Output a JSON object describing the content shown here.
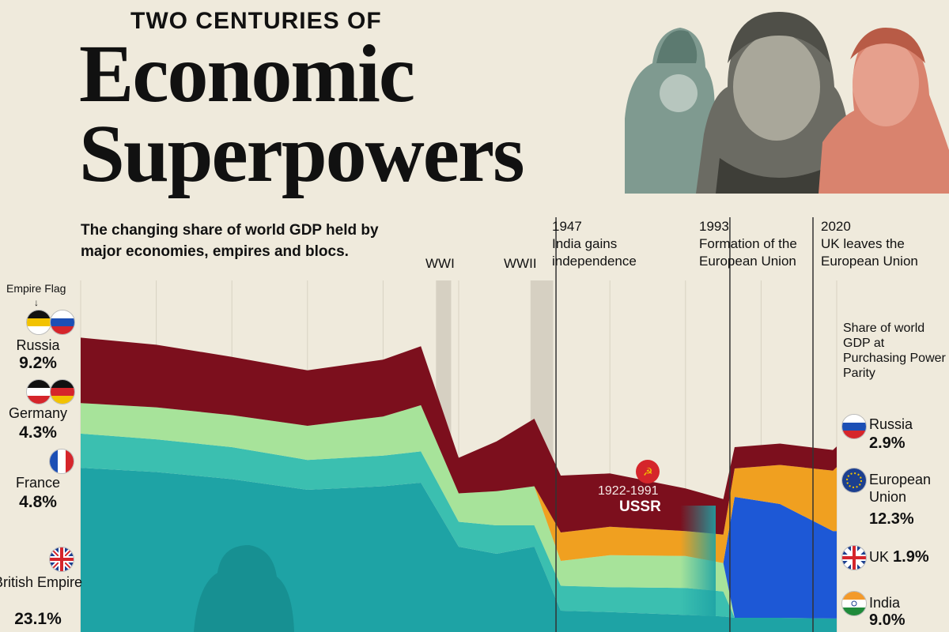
{
  "header": {
    "kicker": "TWO CENTURIES OF",
    "title_line1": "Economic",
    "title_line2": "Superpowers",
    "subtitle": "The changing share of world GDP held by major economies, empires and blocs."
  },
  "events": {
    "wwi": "WWI",
    "wwii": "WWII",
    "e1947_year": "1947",
    "e1947_text": "India gains independence",
    "e1993_year": "1993",
    "e1993_text": "Formation of the European Union",
    "e2020_year": "2020",
    "e2020_text": "UK leaves the European Union"
  },
  "left_legend": {
    "heading": "Empire Flag",
    "russia": {
      "name": "Russia",
      "value": "9.2%"
    },
    "germany": {
      "name": "Germany",
      "value": "4.3%"
    },
    "france": {
      "name": "France",
      "value": "4.8%"
    },
    "british": {
      "name": "British Empire",
      "value": "23.1%"
    }
  },
  "right_legend": {
    "note": "Share of world GDP at Purchasing Power Parity",
    "russia": {
      "name": "Russia",
      "value": "2.9%"
    },
    "eu": {
      "name": "European Union",
      "value": "12.3%"
    },
    "uk": {
      "name": "UK",
      "value": "1.9%"
    },
    "india": {
      "name": "India",
      "value": "9.0%"
    }
  },
  "ussr": {
    "years": "1922-1991",
    "name": "USSR"
  },
  "colors": {
    "background": "#efeadc",
    "russia_ussr": "#7c0f1d",
    "germany": "#a7e39a",
    "france": "#3bbfb0",
    "british_empire": "#1ea3a5",
    "european_union": "#1d58d6",
    "india": "#f0a020"
  },
  "chart_data": {
    "type": "area",
    "x": [
      1820,
      1840,
      1860,
      1880,
      1900,
      1910,
      1920,
      1930,
      1940,
      1947,
      1960,
      1980,
      1990,
      1993,
      2005,
      2019,
      2020
    ],
    "series": [
      {
        "name": "British Empire",
        "values": [
          23.1,
          22.5,
          21.5,
          20.0,
          20.5,
          21.0,
          12.0,
          11.0,
          12.0,
          3.0,
          2.8,
          2.4,
          2.2,
          2.0,
          2.0,
          1.9,
          1.9
        ]
      },
      {
        "name": "France",
        "values": [
          4.8,
          4.6,
          4.5,
          4.2,
          4.3,
          4.4,
          3.5,
          4.0,
          3.0,
          3.5,
          3.5,
          3.8,
          3.5,
          0,
          0,
          0,
          0
        ]
      },
      {
        "name": "Germany",
        "values": [
          4.3,
          4.5,
          4.5,
          4.8,
          5.5,
          6.5,
          4.0,
          4.8,
          5.5,
          3.5,
          4.5,
          4.5,
          4.0,
          0,
          0,
          0,
          0
        ]
      },
      {
        "name": "European Union",
        "values": [
          0,
          0,
          0,
          0,
          0,
          0,
          0,
          0,
          0,
          0,
          0,
          0,
          0,
          17.0,
          16.0,
          12.3,
          12.3
        ]
      },
      {
        "name": "India",
        "values": [
          0,
          0,
          0,
          0,
          0,
          0,
          0,
          0,
          0,
          4.0,
          4.0,
          3.5,
          4.0,
          4.0,
          5.5,
          8.5,
          9.0
        ]
      },
      {
        "name": "Russia",
        "values": [
          9.2,
          8.8,
          8.2,
          7.8,
          8.0,
          8.3,
          5.0,
          7.0,
          9.5,
          8.0,
          7.5,
          6.0,
          5.0,
          3.0,
          3.0,
          2.9,
          2.9
        ]
      }
    ]
  }
}
